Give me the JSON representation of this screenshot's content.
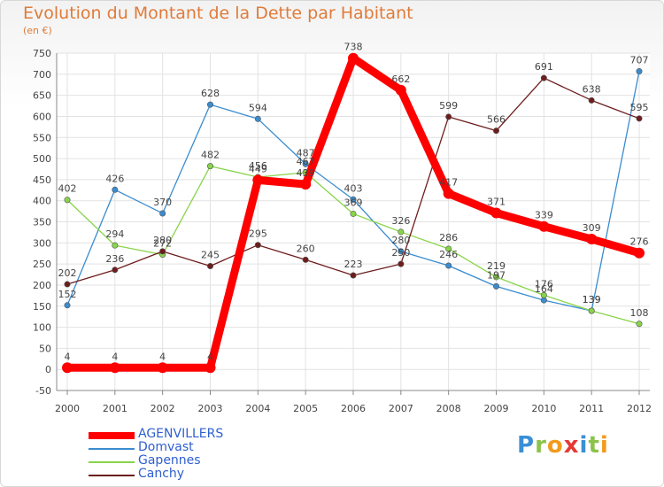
{
  "header": {
    "title": "Evolution du Montant de la Dette par Habitant",
    "subtitle": "(en €)"
  },
  "brand": {
    "letters": [
      "P",
      "r",
      "o",
      "x",
      "i",
      "t",
      "i"
    ],
    "colors": [
      "#3a8fd6",
      "#8bc34a",
      "#f29b1d",
      "#e53935",
      "#3a8fd6",
      "#8bc34a",
      "#f29b1d"
    ]
  },
  "chart_data": {
    "type": "line",
    "x": [
      "2000",
      "2001",
      "2002",
      "2003",
      "2004",
      "2005",
      "2006",
      "2007",
      "2008",
      "2009",
      "2010",
      "2011",
      "2012"
    ],
    "ylim": [
      -50,
      750
    ],
    "yticks": [
      -50,
      0,
      50,
      100,
      150,
      200,
      250,
      300,
      350,
      400,
      450,
      500,
      550,
      600,
      650,
      700,
      750
    ],
    "grid": true,
    "legend_position": "bottom-left",
    "series": [
      {
        "name": "AGENVILLERS",
        "color": "#ff0000",
        "values": [
          4,
          4,
          4,
          4,
          449,
          439,
          738,
          662,
          417,
          371,
          339,
          309,
          276
        ]
      },
      {
        "name": "Domvast",
        "color": "#3a8ccf",
        "values": [
          152,
          426,
          370,
          628,
          594,
          487,
          403,
          280,
          246,
          197,
          164,
          139,
          707
        ]
      },
      {
        "name": "Gapennes",
        "color": "#88d44a",
        "values": [
          402,
          294,
          272,
          482,
          456,
          467,
          369,
          326,
          286,
          219,
          176,
          139,
          108
        ]
      },
      {
        "name": "Canchy",
        "color": "#6e1d1d",
        "values": [
          202,
          236,
          280,
          245,
          295,
          260,
          223,
          250,
          599,
          566,
          691,
          638,
          595
        ]
      }
    ]
  }
}
